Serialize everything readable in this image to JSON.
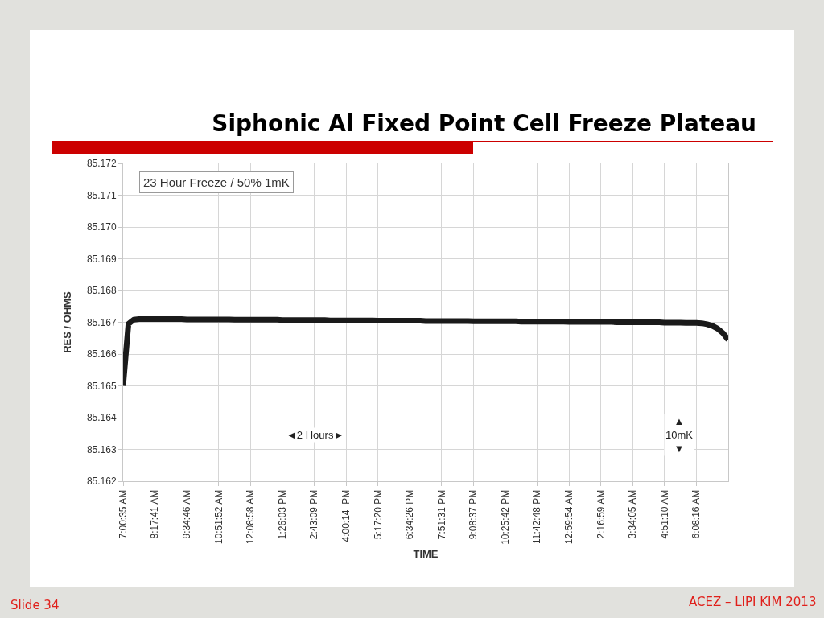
{
  "chart_data": {
    "type": "line",
    "title": "Siphonic Al Fixed Point Cell Freeze Plateau",
    "xlabel": "TIME",
    "ylabel": "RES / OHMS",
    "categories": [
      "7:00:35 AM",
      null,
      null,
      null,
      null,
      null,
      "8:17:41 AM",
      null,
      null,
      null,
      null,
      null,
      "9:34:46 AM",
      null,
      null,
      null,
      null,
      null,
      "10:51:52 AM",
      null,
      null,
      null,
      null,
      null,
      "12:08:58 AM",
      null,
      null,
      null,
      null,
      null,
      "1:26:03 PM",
      null,
      null,
      null,
      null,
      null,
      "2:43:09 PM",
      null,
      null,
      null,
      null,
      null,
      "4:00:14  PM",
      null,
      null,
      null,
      null,
      null,
      "5:17:20 PM",
      null,
      null,
      null,
      null,
      null,
      "6:34:26 PM",
      null,
      null,
      null,
      null,
      null,
      "7:51:31 PM",
      null,
      null,
      null,
      null,
      null,
      "9:08:37 PM",
      null,
      null,
      null,
      null,
      null,
      "10:25:42 PM",
      null,
      null,
      null,
      null,
      null,
      "11:42:48 PM",
      null,
      null,
      null,
      null,
      null,
      "12:59:54 AM",
      null,
      null,
      null,
      null,
      null,
      "2:16:59 AM",
      null,
      null,
      null,
      null,
      null,
      "3:34:05 AM",
      null,
      null,
      null,
      null,
      null,
      "4:51:10 AM",
      null,
      null,
      null,
      null,
      null,
      "6:08:16 AM",
      null,
      null,
      null,
      null,
      null,
      null
    ],
    "series": [
      {
        "color": "#1a1a1a",
        "values": [
          85.165,
          85.16695,
          85.16708,
          85.1671,
          85.1671,
          85.1671,
          85.1671,
          85.1671,
          85.1671,
          85.1671,
          85.1671,
          85.1671,
          85.16709,
          85.16709,
          85.16709,
          85.16709,
          85.16709,
          85.16709,
          85.16709,
          85.16709,
          85.16709,
          85.16708,
          85.16708,
          85.16708,
          85.16708,
          85.16708,
          85.16708,
          85.16708,
          85.16708,
          85.16708,
          85.16707,
          85.16707,
          85.16707,
          85.16707,
          85.16707,
          85.16707,
          85.16707,
          85.16707,
          85.16707,
          85.16706,
          85.16706,
          85.16706,
          85.16706,
          85.16706,
          85.16706,
          85.16706,
          85.16706,
          85.16706,
          85.16705,
          85.16705,
          85.16705,
          85.16705,
          85.16705,
          85.16705,
          85.16705,
          85.16705,
          85.16705,
          85.16704,
          85.16704,
          85.16704,
          85.16704,
          85.16704,
          85.16704,
          85.16704,
          85.16704,
          85.16704,
          85.16703,
          85.16703,
          85.16703,
          85.16703,
          85.16703,
          85.16703,
          85.16703,
          85.16703,
          85.16703,
          85.16702,
          85.16702,
          85.16702,
          85.16702,
          85.16702,
          85.16702,
          85.16702,
          85.16702,
          85.16702,
          85.16701,
          85.16701,
          85.16701,
          85.16701,
          85.16701,
          85.16701,
          85.16701,
          85.16701,
          85.16701,
          85.167,
          85.167,
          85.167,
          85.167,
          85.167,
          85.167,
          85.167,
          85.167,
          85.167,
          85.16699,
          85.16699,
          85.16699,
          85.16699,
          85.16698,
          85.16698,
          85.16698,
          85.16697,
          85.16694,
          85.16689,
          85.1668,
          85.16666,
          85.16645
        ]
      }
    ],
    "ylim": [
      85.162,
      85.172
    ],
    "yticks": [
      85.162,
      85.163,
      85.164,
      85.165,
      85.166,
      85.167,
      85.168,
      85.169,
      {
        "value": 85.17,
        "label": "85.170"
      },
      85.171,
      85.172
    ],
    "grid": true,
    "line_style": "solid",
    "annotations": [
      "23 Hour Freeze / 50% 1mK",
      "◄2 Hours►",
      "▲\n10mK\n▼",
      "Slide 34",
      "ACEZ – LIPI KIM 2013"
    ]
  }
}
